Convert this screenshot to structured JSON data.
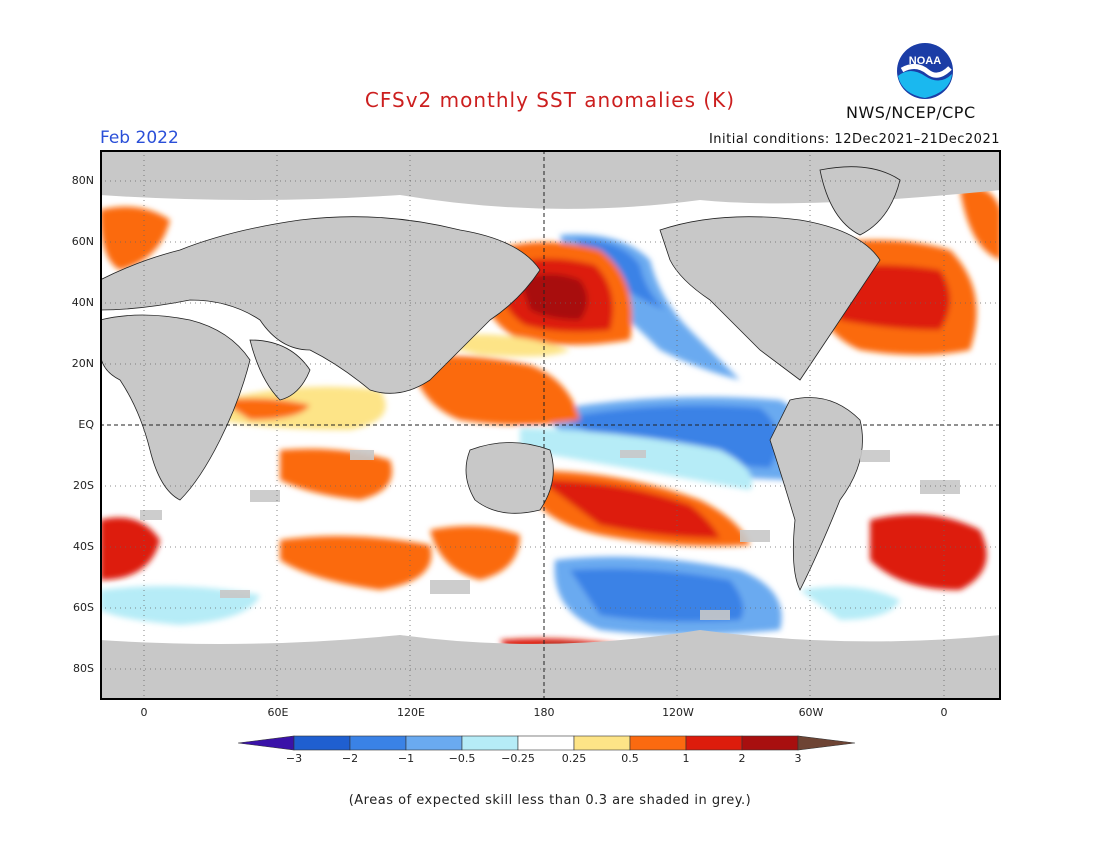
{
  "header": {
    "title": "CFSv2 monthly SST anomalies (K)",
    "agency": "NWS/NCEP/CPC",
    "logo_text": "NOAA",
    "month": "Feb 2022",
    "initial_conditions": "Initial conditions: 12Dec2021–21Dec2021"
  },
  "map": {
    "lat_labels": [
      "80N",
      "60N",
      "40N",
      "20N",
      "EQ",
      "20S",
      "40S",
      "60S",
      "80S"
    ],
    "lon_labels": [
      "0",
      "60E",
      "120E",
      "180",
      "120W",
      "60W",
      "0"
    ],
    "land_color": "#c8c8c8",
    "skill_mask_color": "#c8c8c8"
  },
  "colorbar": {
    "levels": [
      "−3",
      "−2",
      "−1",
      "−0.5",
      "−0.25",
      "0.25",
      "0.5",
      "1",
      "2",
      "3"
    ],
    "colors": [
      "#3a12a8",
      "#1f5fd0",
      "#3a82e6",
      "#6aaaf0",
      "#b6ecf7",
      "#ffffff",
      "#fde487",
      "#fb6a10",
      "#dd1c0c",
      "#a80f0f",
      "#6e4434"
    ]
  },
  "footnote": "(Areas of expected skill less than 0.3 are shaded in grey.)"
}
